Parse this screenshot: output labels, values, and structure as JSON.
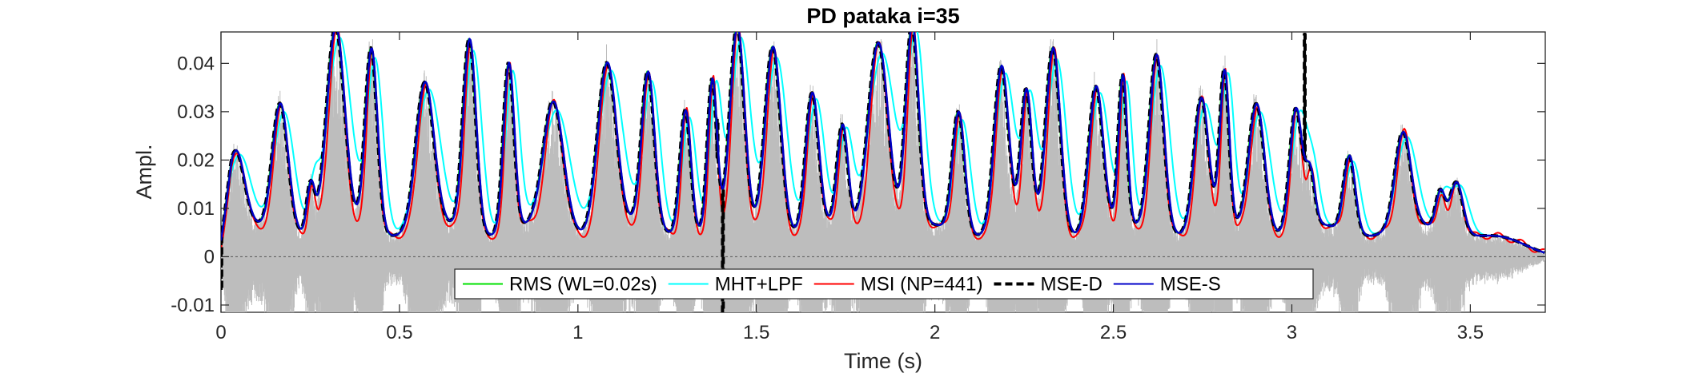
{
  "chart_data": {
    "type": "line",
    "title": "PD pataka i=35",
    "xlabel": "Time (s)",
    "ylabel": "Ampl.",
    "xlim": [
      0,
      3.71
    ],
    "ylim": [
      -0.0115,
      0.0465
    ],
    "xticks": [
      0,
      0.5,
      1,
      1.5,
      2,
      2.5,
      3,
      3.5
    ],
    "xtick_labels": [
      "0",
      "0.5",
      "1",
      "1.5",
      "2",
      "2.5",
      "3",
      "3.5"
    ],
    "yticks": [
      -0.01,
      0,
      0.01,
      0.02,
      0.03,
      0.04
    ],
    "ytick_labels": [
      "-0.01",
      "0",
      "0.01",
      "0.02",
      "0.03",
      "0.04"
    ],
    "grid": false,
    "legend_position": "bottom-center",
    "legend_orientation": "horizontal",
    "background_signal": {
      "description": "raw speech waveform",
      "color": "#bdbdbd",
      "min_value": -0.0115,
      "max_value": 0.045
    },
    "peaks": {
      "times": [
        0.04,
        0.165,
        0.25,
        0.32,
        0.42,
        0.57,
        0.695,
        0.805,
        0.93,
        1.08,
        1.195,
        1.3,
        1.375,
        1.445,
        1.545,
        1.655,
        1.74,
        1.84,
        1.935,
        2.065,
        2.185,
        2.255,
        2.33,
        2.45,
        2.525,
        2.62,
        2.745,
        2.81,
        2.9,
        3.01,
        3.05,
        3.16,
        3.31,
        3.415,
        3.46
      ],
      "values": [
        0.0195,
        0.031,
        0.014,
        0.045,
        0.042,
        0.034,
        0.044,
        0.039,
        0.03,
        0.039,
        0.036,
        0.03,
        0.035,
        0.045,
        0.043,
        0.032,
        0.025,
        0.044,
        0.046,
        0.029,
        0.038,
        0.032,
        0.042,
        0.034,
        0.035,
        0.041,
        0.031,
        0.036,
        0.031,
        0.029,
        0.015,
        0.02,
        0.0235,
        0.012,
        0.015
      ],
      "widths": [
        0.024,
        0.022,
        0.011,
        0.025,
        0.017,
        0.025,
        0.018,
        0.015,
        0.028,
        0.026,
        0.018,
        0.015,
        0.013,
        0.02,
        0.022,
        0.018,
        0.015,
        0.028,
        0.018,
        0.017,
        0.02,
        0.015,
        0.02,
        0.02,
        0.012,
        0.02,
        0.02,
        0.013,
        0.022,
        0.017,
        0.013,
        0.016,
        0.022,
        0.013,
        0.018
      ]
    },
    "series": [
      {
        "name": "RMS (WL=0.02s)",
        "color": "#00e000",
        "style": "solid",
        "shift": 0.0,
        "scale": 1.0,
        "smooth": 1.0
      },
      {
        "name": "MHT+LPF",
        "color": "#00ffff",
        "style": "solid",
        "shift": 0.012,
        "scale": 0.95,
        "smooth": 1.3
      },
      {
        "name": "MSI (NP=441)",
        "color": "#ff0000",
        "style": "solid",
        "shift": 0.004,
        "scale": 1.0,
        "smooth": 0.85
      },
      {
        "name": "MSE-D",
        "color": "#000000",
        "style": "dashed",
        "shift": 0.0,
        "scale": 1.0,
        "smooth": 1.0
      },
      {
        "name": "MSE-S",
        "color": "#0000c8",
        "style": "solid",
        "shift": 0.002,
        "scale": 1.0,
        "smooth": 1.0
      }
    ],
    "mse_d_spikes": [
      {
        "time": 0.0,
        "value": -0.007
      },
      {
        "time": 1.39,
        "value": 0.0285
      },
      {
        "time": 1.405,
        "value": -0.0115
      },
      {
        "time": 3.035,
        "value": 0.046
      }
    ]
  }
}
